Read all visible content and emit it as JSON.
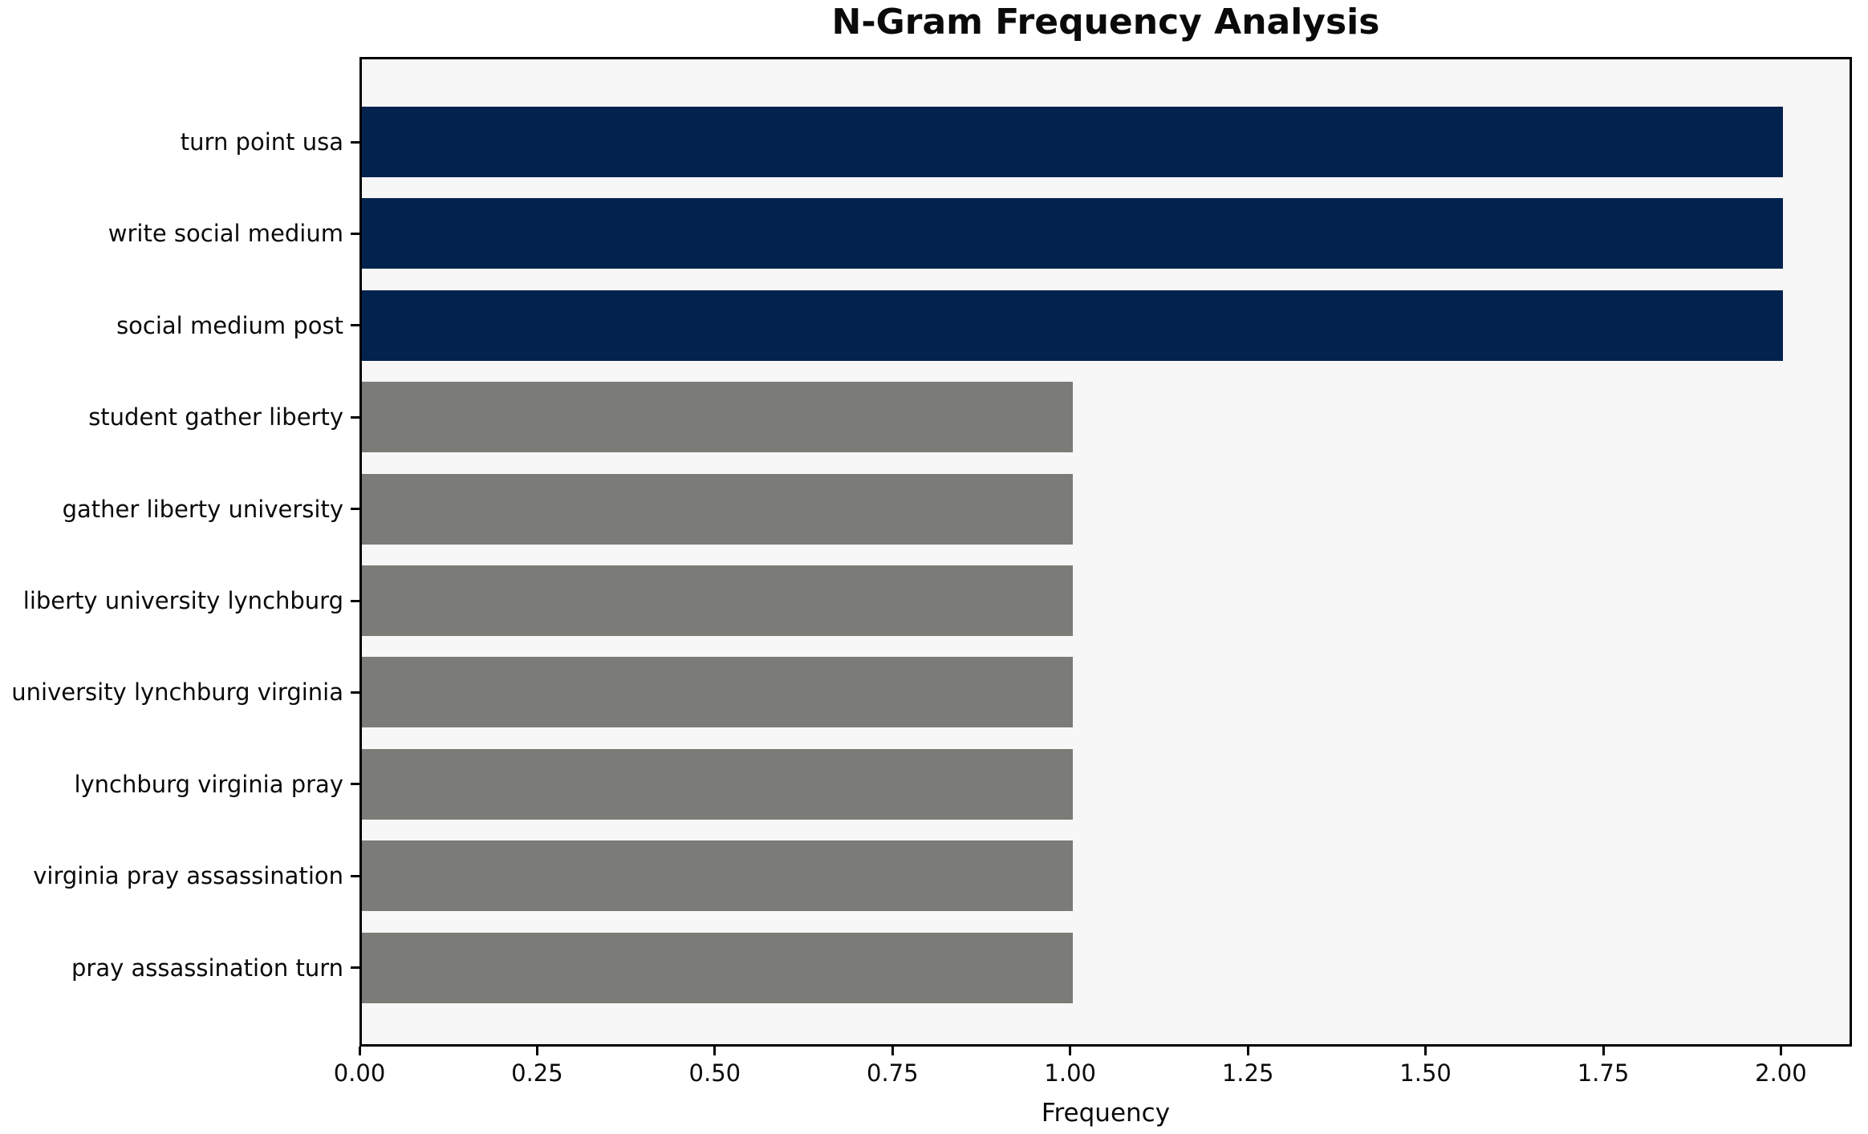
{
  "chart_data": {
    "type": "bar",
    "orientation": "horizontal",
    "title": "N-Gram Frequency Analysis",
    "xlabel": "Frequency",
    "ylabel": "",
    "categories": [
      "turn point usa",
      "write social medium",
      "social medium post",
      "student gather liberty",
      "gather liberty university",
      "liberty university lynchburg",
      "university lynchburg virginia",
      "lynchburg virginia pray",
      "virginia pray assassination",
      "pray assassination turn"
    ],
    "values": [
      2,
      2,
      2,
      1,
      1,
      1,
      1,
      1,
      1,
      1
    ],
    "bar_colors": [
      "#02234e",
      "#02234e",
      "#02234e",
      "#7b7b77",
      "#7b7b77",
      "#7b7b77",
      "#7b7b77",
      "#7b7b77",
      "#7b7b77",
      "#7b7b77"
    ],
    "xlim": [
      0,
      2.1
    ],
    "xticks": [
      0,
      0.25,
      0.5,
      0.75,
      1.0,
      1.25,
      1.5,
      1.75,
      2.0
    ],
    "xtick_labels": [
      "0.00",
      "0.25",
      "0.50",
      "0.75",
      "1.00",
      "1.25",
      "1.50",
      "1.75",
      "2.00"
    ],
    "grid": false,
    "legend": "none",
    "colors": {
      "highlight_bar": "#02234e",
      "default_bar": "#7b7b77",
      "plot_background": "#f8f7f7",
      "figure_background": "#ffffff",
      "axis_spine": "#000000",
      "text": "#0a0a0a"
    }
  }
}
